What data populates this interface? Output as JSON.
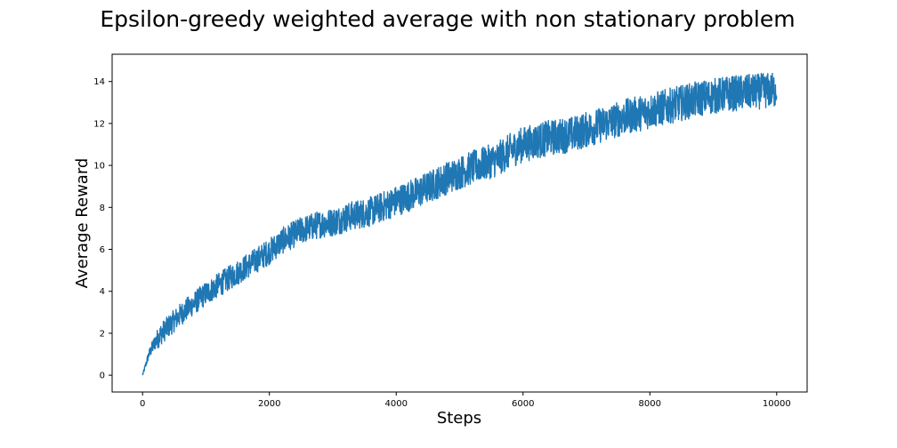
{
  "chart_data": {
    "type": "line",
    "title": "Epsilon-greedy weighted average with non stationary problem",
    "xlabel": "Steps",
    "ylabel": "Average Reward",
    "xlim": [
      -480,
      10480
    ],
    "ylim": [
      -0.8,
      15.3
    ],
    "xticks": [
      0,
      2000,
      4000,
      6000,
      8000,
      10000
    ],
    "yticks": [
      0,
      2,
      4,
      6,
      8,
      10,
      12,
      14
    ],
    "grid": false,
    "series": [
      {
        "name": "Average Reward",
        "color": "#1f77b4",
        "x": [
          0,
          100,
          200,
          300,
          400,
          500,
          600,
          800,
          1000,
          1200,
          1400,
          1600,
          1800,
          2000,
          2200,
          2500,
          2800,
          3000,
          3300,
          3600,
          4000,
          4400,
          4800,
          5200,
          5600,
          5800,
          6000,
          6400,
          6800,
          7200,
          7600,
          8000,
          8400,
          8800,
          9200,
          9600,
          10000
        ],
        "values": [
          0.0,
          1.0,
          1.6,
          2.0,
          2.3,
          2.6,
          2.9,
          3.4,
          3.9,
          4.3,
          4.7,
          5.1,
          5.5,
          5.9,
          6.4,
          6.9,
          7.2,
          7.3,
          7.6,
          7.8,
          8.3,
          8.8,
          9.4,
          9.9,
          10.3,
          10.7,
          11.0,
          11.3,
          11.5,
          11.9,
          12.3,
          12.6,
          12.9,
          13.2,
          13.4,
          13.5,
          13.6
        ],
        "noise_band": 0.85,
        "n_points": 10000
      }
    ]
  }
}
